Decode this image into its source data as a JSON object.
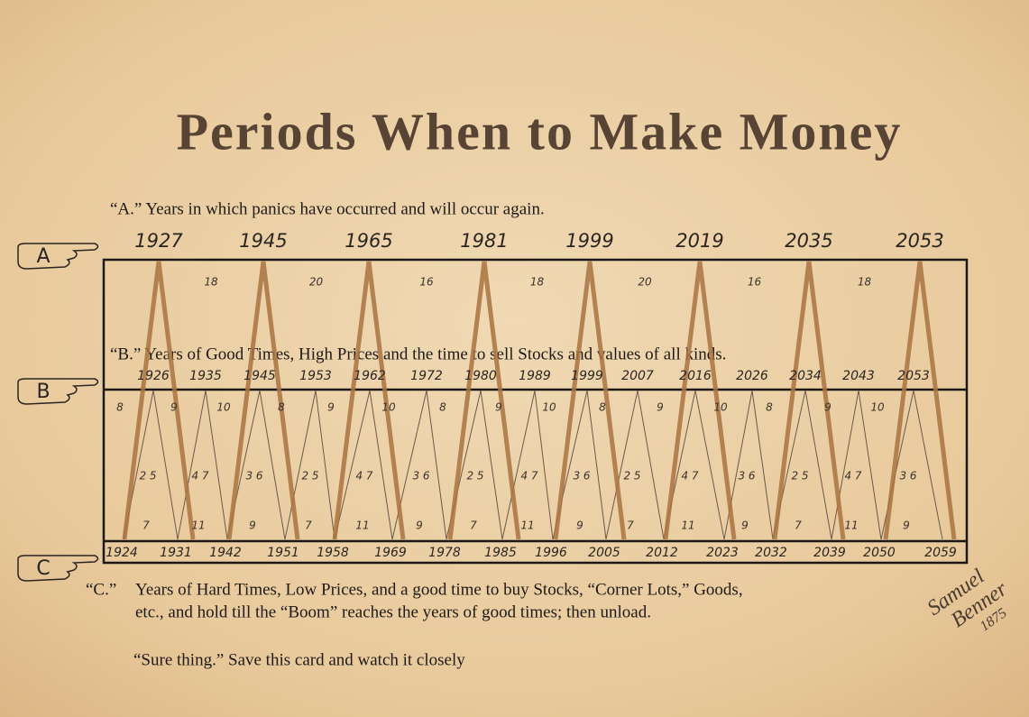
{
  "title": "Periods When to Make Money",
  "row_a": {
    "marker": "A",
    "caption": "“A.” Years in which panics have occurred and will occur again.",
    "years": [
      "1927",
      "1945",
      "1965",
      "1981",
      "1999",
      "2019",
      "2035",
      "2053"
    ],
    "intervals": [
      "18",
      "20",
      "16",
      "18",
      "20",
      "16",
      "18"
    ]
  },
  "row_b": {
    "marker": "B",
    "caption": "“B.” Years of Good Times, High Prices and the time to sell Stocks and values of all kinds.",
    "years": [
      "1926",
      "1935",
      "1945",
      "1953",
      "1962",
      "1972",
      "1980",
      "1989",
      "1999",
      "2007",
      "2016",
      "2026",
      "2034",
      "2043",
      "2053"
    ],
    "upper_numbers": [
      "8",
      "9",
      "10",
      "8",
      "9",
      "10",
      "8",
      "9",
      "10",
      "8",
      "9",
      "10",
      "8",
      "9",
      "10"
    ],
    "middle_numbers": [
      "2 5",
      "4 7",
      "3 6",
      "2 5",
      "4 7",
      "3 6",
      "2 5",
      "4 7",
      "3 6",
      "2 5",
      "4 7",
      "3 6",
      "2 5",
      "4 7",
      "3 6"
    ],
    "lower_numbers": [
      "7",
      "11",
      "9",
      "7",
      "11",
      "9",
      "7",
      "11",
      "9",
      "7",
      "11",
      "9",
      "7",
      "11",
      "9"
    ]
  },
  "row_c": {
    "marker": "C",
    "years": [
      "1924",
      "1931",
      "1942",
      "1951",
      "1958",
      "1969",
      "1978",
      "1985",
      "1996",
      "2005",
      "2012",
      "2023",
      "2032",
      "2039",
      "2050",
      "2059"
    ],
    "caption_label": "“C.”",
    "caption_line1": "Years of Hard Times, Low Prices, and a good time to buy Stocks, “Corner Lots,” Goods,",
    "caption_line2": "etc., and hold till  the “Boom” reaches the years of good times; then unload."
  },
  "footer": "“Sure thing.” Save this card and watch it closely",
  "signature": [
    "Samuel",
    "Benner",
    "1875"
  ]
}
